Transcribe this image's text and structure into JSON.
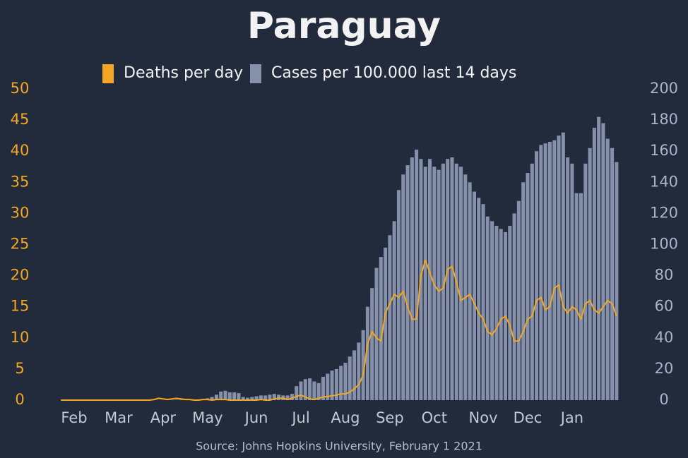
{
  "chart_data": {
    "type": "bar",
    "title": "Paraguay",
    "source": "Source: Johns Hopkins University, February 1 2021",
    "categories": [
      null,
      null,
      null,
      "Feb",
      null,
      null,
      null,
      null,
      null,
      null,
      null,
      null,
      null,
      "Mar",
      null,
      null,
      null,
      null,
      null,
      null,
      null,
      null,
      null,
      "Apr",
      null,
      null,
      null,
      null,
      null,
      null,
      null,
      null,
      null,
      "May",
      null,
      null,
      null,
      null,
      null,
      null,
      null,
      null,
      null,
      null,
      "Jun",
      null,
      null,
      null,
      null,
      null,
      null,
      null,
      null,
      null,
      "Jul",
      null,
      null,
      null,
      null,
      null,
      null,
      null,
      null,
      null,
      "Aug",
      null,
      null,
      null,
      null,
      null,
      null,
      null,
      null,
      null,
      "Sep",
      null,
      null,
      null,
      null,
      null,
      null,
      null,
      null,
      null,
      "Oct",
      null,
      null,
      null,
      null,
      null,
      null,
      null,
      null,
      null,
      null,
      "Nov",
      null,
      null,
      null,
      null,
      null,
      null,
      null,
      null,
      null,
      "Dec",
      null,
      null,
      null,
      null,
      null,
      null,
      null,
      null,
      null,
      "Jan",
      null,
      null,
      null,
      null,
      null,
      null,
      null,
      null,
      null,
      null
    ],
    "series": [
      {
        "name": "Deaths per day",
        "type": "line",
        "axis": "y",
        "color": "#f5a623",
        "values": [
          0,
          0,
          0,
          0,
          0,
          0,
          0,
          0,
          0,
          0,
          0,
          0,
          0,
          0,
          0,
          0,
          0,
          0,
          0,
          0,
          0,
          0.1,
          0.3,
          0.2,
          0.1,
          0.2,
          0.3,
          0.2,
          0.1,
          0.1,
          0,
          0,
          0.1,
          0.1,
          0,
          0.1,
          0.1,
          0.1,
          0,
          0,
          0,
          0,
          0,
          0,
          0,
          0.1,
          0,
          0,
          0.2,
          0.3,
          0.3,
          0.1,
          0.3,
          0.6,
          0.8,
          0.5,
          0.2,
          0.1,
          0.3,
          0.5,
          0.6,
          0.7,
          0.8,
          1,
          1,
          1.3,
          1.8,
          2.5,
          4,
          9,
          11,
          10,
          9.5,
          14,
          15.5,
          17,
          16.5,
          17.5,
          15,
          13,
          13,
          20,
          22.5,
          20.5,
          18.5,
          17.5,
          18,
          21,
          21.5,
          19,
          16,
          16.5,
          17,
          15.5,
          14,
          13,
          11,
          10.5,
          11.5,
          13,
          13.5,
          12,
          9.5,
          9.5,
          11,
          13,
          13.5,
          16,
          16.5,
          14.5,
          15,
          18,
          18.5,
          15,
          14,
          15,
          14.5,
          13,
          15.5,
          16,
          14.5,
          14,
          15,
          16,
          15.5,
          13.5
        ]
      },
      {
        "name": "Cases per 100.000 last 14 days",
        "type": "bar",
        "axis": "y2",
        "color": "#8591ab",
        "values": [
          0,
          0,
          0,
          0,
          0,
          0,
          0,
          0,
          0,
          0,
          0,
          0,
          0,
          0,
          0,
          0,
          0,
          0,
          0,
          0,
          0,
          0,
          0,
          0,
          0,
          0.1,
          0.2,
          0.2,
          0.3,
          0.3,
          0.3,
          0.5,
          0.8,
          1.2,
          2,
          3.5,
          5.5,
          6,
          5,
          5,
          4.5,
          2,
          1.5,
          2,
          2.5,
          3,
          3,
          3.5,
          4,
          3.5,
          3,
          3,
          4,
          9,
          12,
          13.5,
          14,
          12,
          11,
          15,
          17,
          19,
          20,
          22,
          24,
          28,
          32,
          37,
          45,
          60,
          72,
          85,
          92,
          98,
          106,
          115,
          135,
          145,
          151,
          156,
          161,
          155,
          150,
          155,
          150,
          148,
          152,
          155,
          156,
          152,
          150,
          145,
          140,
          134,
          130,
          126,
          118,
          115,
          112,
          110,
          108,
          112,
          120,
          128,
          140,
          146,
          152,
          160,
          164,
          165,
          166,
          167,
          170,
          172,
          156,
          152,
          133,
          133,
          152,
          162,
          175,
          182,
          178,
          168,
          162,
          153
        ]
      }
    ],
    "ylim": [
      0,
      50
    ],
    "yticks": [
      0,
      5,
      10,
      15,
      20,
      25,
      30,
      35,
      40,
      45,
      50
    ],
    "y2lim": [
      0,
      200
    ],
    "y2ticks": [
      0,
      20,
      40,
      60,
      80,
      100,
      120,
      140,
      160,
      180,
      200
    ]
  }
}
